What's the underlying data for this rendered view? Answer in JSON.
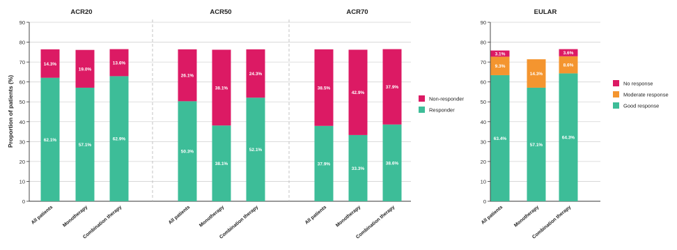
{
  "ylabel": "Proportion of patients (%)",
  "colors": {
    "responder": "#3dbd98",
    "non_responder": "#dc1a64",
    "good": "#3dbd98",
    "moderate": "#f4952f",
    "none": "#dc1a64",
    "grid": "#d3d3d3",
    "axis": "#333333",
    "divider": "#bdbdbd"
  },
  "legend_acr": {
    "items": [
      {
        "label": "Non-responder",
        "color_key": "non_responder"
      },
      {
        "label": "Responder",
        "color_key": "responder"
      }
    ]
  },
  "legend_eular": {
    "items": [
      {
        "label": "No response",
        "color_key": "none"
      },
      {
        "label": "Moderate response",
        "color_key": "moderate"
      },
      {
        "label": "Good response",
        "color_key": "good"
      }
    ]
  },
  "chart_data": [
    {
      "type": "bar",
      "stacked": true,
      "title": "ACR20",
      "categories": [
        "All patients",
        "Monotherapy",
        "Combination therapy"
      ],
      "ylim": [
        0,
        90
      ],
      "yticks": [
        0,
        10,
        20,
        30,
        40,
        50,
        60,
        70,
        80,
        90
      ],
      "grid": true,
      "series": [
        {
          "name": "Responder",
          "color_key": "responder",
          "values": [
            62.1,
            57.1,
            62.9
          ],
          "labels": [
            "62.1%",
            "57.1%",
            "62.9%"
          ]
        },
        {
          "name": "Non-responder",
          "color_key": "non_responder",
          "values": [
            14.3,
            19.0,
            13.6
          ],
          "labels": [
            "14.3%",
            "19.0%",
            "13.6%"
          ]
        }
      ]
    },
    {
      "type": "bar",
      "stacked": true,
      "title": "ACR50",
      "categories": [
        "All patients",
        "Monotherapy",
        "Combination therapy"
      ],
      "ylim": [
        0,
        90
      ],
      "grid": true,
      "series": [
        {
          "name": "Responder",
          "color_key": "responder",
          "values": [
            50.3,
            38.1,
            52.1
          ],
          "labels": [
            "50.3%",
            "38.1%",
            "52.1%"
          ]
        },
        {
          "name": "Non-responder",
          "color_key": "non_responder",
          "values": [
            26.1,
            38.1,
            24.3
          ],
          "labels": [
            "26.1%",
            "38.1%",
            "24.3%"
          ]
        }
      ]
    },
    {
      "type": "bar",
      "stacked": true,
      "title": "ACR70",
      "categories": [
        "All patients",
        "Monotherapy",
        "Combination therapy"
      ],
      "ylim": [
        0,
        90
      ],
      "grid": true,
      "series": [
        {
          "name": "Responder",
          "color_key": "responder",
          "values": [
            37.9,
            33.3,
            38.6
          ],
          "labels": [
            "37.9%",
            "33.3%",
            "38.6%"
          ]
        },
        {
          "name": "Non-responder",
          "color_key": "non_responder",
          "values": [
            38.5,
            42.9,
            37.9
          ],
          "labels": [
            "38.5%",
            "42.9%",
            "37.9%"
          ]
        }
      ]
    },
    {
      "type": "bar",
      "stacked": true,
      "title": "EULAR",
      "categories": [
        "All patients",
        "Monotherapy",
        "Combination therapy"
      ],
      "ylim": [
        0,
        90
      ],
      "yticks": [
        0,
        10,
        20,
        30,
        40,
        50,
        60,
        70,
        80,
        90
      ],
      "grid": true,
      "series": [
        {
          "name": "Good response",
          "color_key": "good",
          "values": [
            63.4,
            57.1,
            64.3
          ],
          "labels": [
            "63.4%",
            "57.1%",
            "64.3%"
          ]
        },
        {
          "name": "Moderate response",
          "color_key": "moderate",
          "values": [
            9.3,
            14.3,
            8.6
          ],
          "labels": [
            "9.3%",
            "14.3%",
            "8.6%"
          ]
        },
        {
          "name": "No response",
          "color_key": "none",
          "values": [
            3.1,
            0,
            3.6
          ],
          "labels": [
            "3.1%",
            "",
            "3.6%"
          ]
        }
      ]
    }
  ]
}
